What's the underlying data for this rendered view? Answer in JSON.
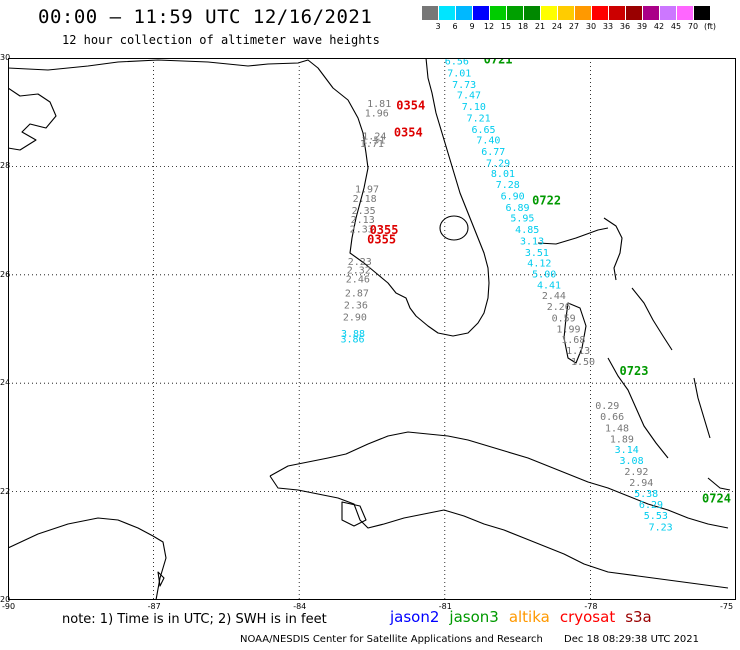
{
  "header": {
    "title": "00:00 – 11:59 UTC 12/16/2021",
    "subtitle": "12 hour collection of altimeter wave heights"
  },
  "colorbar": {
    "colors": [
      "#777777",
      "#00e5ff",
      "#00b8ff",
      "#0000ff",
      "#00cc00",
      "#00a000",
      "#008800",
      "#ffff00",
      "#ffcc00",
      "#ff9900",
      "#ff0000",
      "#cc0000",
      "#990000",
      "#aa0088",
      "#cc77ff",
      "#ff66ff",
      "#000000"
    ],
    "labels": [
      "3",
      "6",
      "9",
      "12",
      "15",
      "18",
      "21",
      "24",
      "27",
      "30",
      "33",
      "36",
      "39",
      "42",
      "45",
      "70",
      "(ft)"
    ]
  },
  "axes": {
    "lat_ticks": [
      "30",
      "28",
      "26",
      "24",
      "22",
      "20"
    ],
    "lon_ticks": [
      "-90",
      "-87",
      "-84",
      "-81",
      "-78",
      "-75"
    ]
  },
  "note": "note:  1) Time is in UTC;  2) SWH is in feet",
  "satellites": [
    {
      "name": "jason2",
      "color": "#0000ff"
    },
    {
      "name": "jason3",
      "color": "#009900"
    },
    {
      "name": "altika",
      "color": "#ff9900"
    },
    {
      "name": "cryosat",
      "color": "#ff0000"
    },
    {
      "name": "s3a",
      "color": "#990000"
    }
  ],
  "footer": {
    "credit": "NOAA/NESDIS Center for Satellite Applications and Research",
    "timestamp": "Dec 18 08:29:38 UTC 2021"
  },
  "passes": [
    {
      "time": "0721",
      "color": "#009900",
      "lon": -80.2,
      "lat": 29.9
    },
    {
      "time": "0722",
      "color": "#009900",
      "lon": -79.2,
      "lat": 27.3
    },
    {
      "time": "0723",
      "color": "#009900",
      "lon": -77.4,
      "lat": 24.15
    },
    {
      "time": "0724",
      "color": "#009900",
      "lon": -75.7,
      "lat": 21.8
    },
    {
      "time": "0354",
      "color": "#dd0000",
      "lon": -82.0,
      "lat": 29.05
    },
    {
      "time": "0354",
      "color": "#dd0000",
      "lon": -82.05,
      "lat": 28.55
    },
    {
      "time": "0355",
      "color": "#dd0000",
      "lon": -82.55,
      "lat": 26.75
    },
    {
      "time": "0355",
      "color": "#dd0000",
      "lon": -82.6,
      "lat": 26.58
    }
  ],
  "tracks": [
    {
      "name": "east-track",
      "points": [
        {
          "lon": -81.0,
          "lat": 29.88,
          "v": "6.56",
          "c": "#00ccee"
        },
        {
          "lon": -80.95,
          "lat": 29.66,
          "v": "7.01",
          "c": "#00ccee"
        },
        {
          "lon": -80.85,
          "lat": 29.45,
          "v": "7.73",
          "c": "#00ccee"
        },
        {
          "lon": -80.75,
          "lat": 29.25,
          "v": "7.47",
          "c": "#00ccee"
        },
        {
          "lon": -80.65,
          "lat": 29.04,
          "v": "7.10",
          "c": "#00ccee"
        },
        {
          "lon": -80.55,
          "lat": 28.83,
          "v": "7.21",
          "c": "#00ccee"
        },
        {
          "lon": -80.45,
          "lat": 28.62,
          "v": "6.65",
          "c": "#00ccee"
        },
        {
          "lon": -80.35,
          "lat": 28.42,
          "v": "7.40",
          "c": "#00ccee"
        },
        {
          "lon": -80.25,
          "lat": 28.21,
          "v": "6.77",
          "c": "#00ccee"
        },
        {
          "lon": -80.15,
          "lat": 28.0,
          "v": "7.29",
          "c": "#00ccee"
        },
        {
          "lon": -80.05,
          "lat": 27.8,
          "v": "8.01",
          "c": "#00ccee"
        },
        {
          "lon": -79.95,
          "lat": 27.6,
          "v": "7.28",
          "c": "#00ccee"
        },
        {
          "lon": -79.85,
          "lat": 27.39,
          "v": "6.90",
          "c": "#00ccee"
        },
        {
          "lon": -79.75,
          "lat": 27.18,
          "v": "6.89",
          "c": "#00ccee"
        },
        {
          "lon": -79.65,
          "lat": 26.98,
          "v": "5.95",
          "c": "#00ccee"
        },
        {
          "lon": -79.55,
          "lat": 26.77,
          "v": "4.85",
          "c": "#00ccee"
        },
        {
          "lon": -79.45,
          "lat": 26.56,
          "v": "3.13",
          "c": "#00ccee"
        },
        {
          "lon": -79.35,
          "lat": 26.35,
          "v": "3.51",
          "c": "#00ccee"
        },
        {
          "lon": -79.3,
          "lat": 26.15,
          "v": "4.12",
          "c": "#00ccee"
        },
        {
          "lon": -79.2,
          "lat": 25.95,
          "v": "5.00",
          "c": "#00ccee"
        },
        {
          "lon": -79.1,
          "lat": 25.75,
          "v": "4.41",
          "c": "#00ccee"
        },
        {
          "lon": -79.0,
          "lat": 25.55,
          "v": "2.44",
          "c": "#777777"
        },
        {
          "lon": -78.9,
          "lat": 25.35,
          "v": "2.26",
          "c": "#777777"
        },
        {
          "lon": -78.8,
          "lat": 25.14,
          "v": "0.59",
          "c": "#777777"
        },
        {
          "lon": -78.7,
          "lat": 24.94,
          "v": "1.99",
          "c": "#777777"
        },
        {
          "lon": -78.6,
          "lat": 24.74,
          "v": "1.68",
          "c": "#777777"
        },
        {
          "lon": -78.5,
          "lat": 24.54,
          "v": "1.13",
          "c": "#777777"
        },
        {
          "lon": -78.4,
          "lat": 24.34,
          "v": "1.50",
          "c": "#777777"
        },
        {
          "lon": -77.9,
          "lat": 23.52,
          "v": "0.29",
          "c": "#777777"
        },
        {
          "lon": -77.8,
          "lat": 23.32,
          "v": "0.66",
          "c": "#777777"
        },
        {
          "lon": -77.7,
          "lat": 23.11,
          "v": "1.48",
          "c": "#777777"
        },
        {
          "lon": -77.6,
          "lat": 22.91,
          "v": "1.89",
          "c": "#777777"
        },
        {
          "lon": -77.5,
          "lat": 22.71,
          "v": "3.14",
          "c": "#00ccee"
        },
        {
          "lon": -77.4,
          "lat": 22.51,
          "v": "3.08",
          "c": "#00ccee"
        },
        {
          "lon": -77.3,
          "lat": 22.31,
          "v": "2.92",
          "c": "#777777"
        },
        {
          "lon": -77.2,
          "lat": 22.1,
          "v": "2.94",
          "c": "#777777"
        },
        {
          "lon": -77.1,
          "lat": 21.9,
          "v": "5.38",
          "c": "#00ccee"
        },
        {
          "lon": -77.0,
          "lat": 21.7,
          "v": "6.29",
          "c": "#00ccee"
        },
        {
          "lon": -76.9,
          "lat": 21.49,
          "v": "5.53",
          "c": "#00ccee"
        },
        {
          "lon": -76.8,
          "lat": 21.28,
          "v": "7.23",
          "c": "#00ccee"
        }
      ]
    },
    {
      "name": "west-track",
      "points": [
        {
          "lon": -82.6,
          "lat": 29.1,
          "v": "1.81",
          "c": "#777777"
        },
        {
          "lon": -82.65,
          "lat": 28.92,
          "v": "1.96",
          "c": "#777777"
        },
        {
          "lon": -82.7,
          "lat": 28.5,
          "v": "1.24",
          "c": "#777777"
        },
        {
          "lon": -82.72,
          "lat": 28.42,
          "v": "1.51",
          "c": "#777777"
        },
        {
          "lon": -82.75,
          "lat": 28.36,
          "v": "1.71",
          "c": "#777777"
        },
        {
          "lon": -82.85,
          "lat": 27.52,
          "v": "1.97",
          "c": "#777777"
        },
        {
          "lon": -82.9,
          "lat": 27.34,
          "v": "2.18",
          "c": "#777777"
        },
        {
          "lon": -82.92,
          "lat": 27.12,
          "v": "2.35",
          "c": "#777777"
        },
        {
          "lon": -82.94,
          "lat": 26.96,
          "v": "2.13",
          "c": "#777777"
        },
        {
          "lon": -82.96,
          "lat": 26.78,
          "v": "2.33",
          "c": "#777777"
        },
        {
          "lon": -83.0,
          "lat": 26.18,
          "v": "2.23",
          "c": "#777777"
        },
        {
          "lon": -83.02,
          "lat": 26.02,
          "v": "2.32",
          "c": "#777777"
        },
        {
          "lon": -83.04,
          "lat": 25.86,
          "v": "2.46",
          "c": "#777777"
        },
        {
          "lon": -83.06,
          "lat": 25.6,
          "v": "2.87",
          "c": "#777777"
        },
        {
          "lon": -83.08,
          "lat": 25.38,
          "v": "2.36",
          "c": "#777777"
        },
        {
          "lon": -83.1,
          "lat": 25.16,
          "v": "2.90",
          "c": "#777777"
        },
        {
          "lon": -83.14,
          "lat": 24.85,
          "v": "3.88",
          "c": "#00ccee"
        },
        {
          "lon": -83.15,
          "lat": 24.75,
          "v": "3.86",
          "c": "#00ccee"
        }
      ]
    }
  ]
}
